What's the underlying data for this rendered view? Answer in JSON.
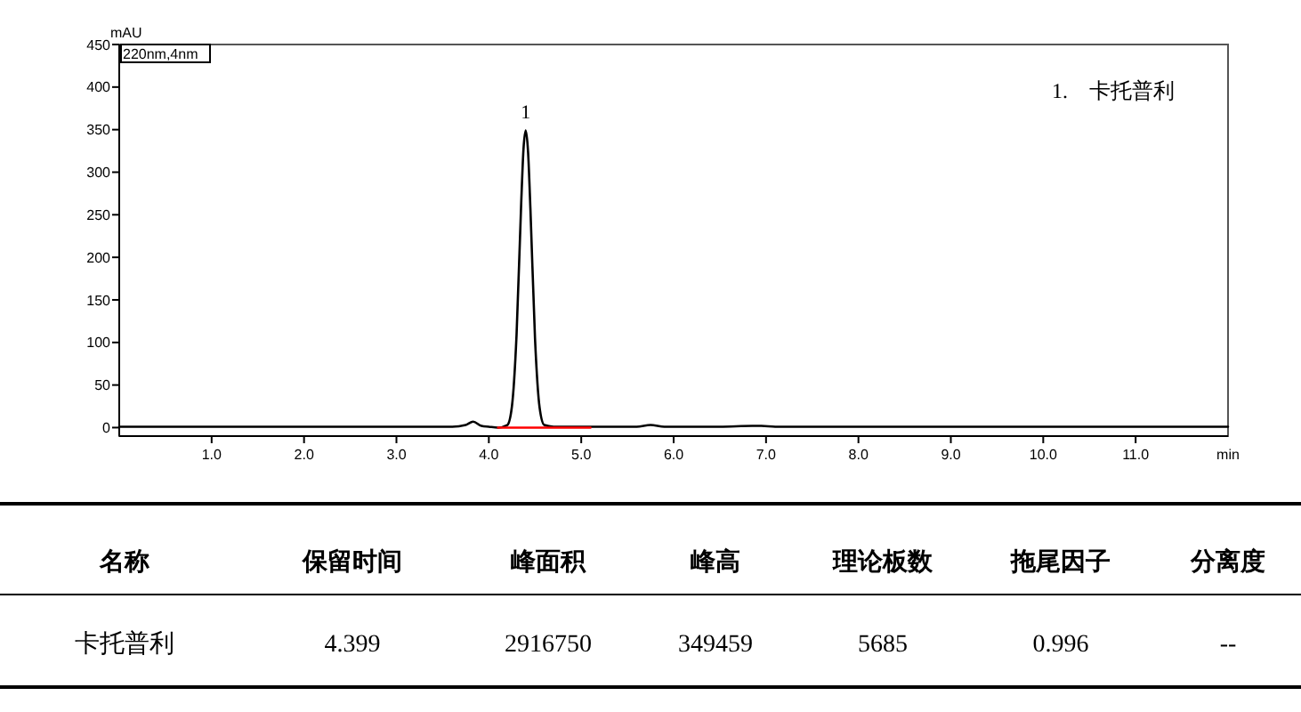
{
  "chart_data": [
    {
      "type": "line",
      "xlabel": "min",
      "ylabel": "mAU",
      "annotations": [
        "220nm,4nm",
        {
          "text": "1",
          "x": 4.399,
          "y": 349
        },
        "1.　卡托普利"
      ],
      "xlim": [
        0,
        12
      ],
      "ylim": [
        -10,
        450
      ],
      "xticks": [
        {
          "value": 1,
          "label": "1.0"
        },
        {
          "value": 2,
          "label": "2.0"
        },
        {
          "value": 3,
          "label": "3.0"
        },
        {
          "value": 4,
          "label": "4.0"
        },
        {
          "value": 5,
          "label": "5.0"
        },
        {
          "value": 6,
          "label": "6.0"
        },
        {
          "value": 7,
          "label": "7.0"
        },
        {
          "value": 8,
          "label": "8.0"
        },
        {
          "value": 9,
          "label": "9.0"
        },
        {
          "value": 10,
          "label": "10.0"
        },
        {
          "value": 11,
          "label": "11.0"
        }
      ],
      "yticks": [
        0,
        50,
        100,
        150,
        200,
        250,
        300,
        350,
        400,
        450
      ],
      "grid": false,
      "marker": "none",
      "line_style": "solid",
      "series": [
        {
          "color": "#000000",
          "x": [
            0,
            1,
            2,
            3,
            3.6,
            3.75,
            3.83,
            3.92,
            4.0,
            4.1,
            4.2,
            4.25,
            4.3,
            4.35,
            4.375,
            4.399,
            4.425,
            4.45,
            4.5,
            4.55,
            4.6,
            4.7,
            4.9,
            5.2,
            5.6,
            5.75,
            5.9,
            6.5,
            6.85,
            6.95,
            7.1,
            8,
            9,
            10,
            11,
            12
          ],
          "values": [
            1,
            1,
            1,
            1,
            1,
            3,
            7,
            2,
            1,
            0,
            3,
            25,
            109,
            263,
            327,
            349,
            323,
            257,
            104,
            23,
            3,
            1,
            1,
            1,
            1,
            3,
            1,
            1,
            2,
            2,
            1,
            1,
            1,
            1,
            1,
            1
          ]
        },
        {
          "color": "#ff0000",
          "x": [
            4.1,
            5.1
          ],
          "values": [
            0,
            0
          ]
        }
      ]
    },
    {
      "type": "other",
      "categories": [
        "名称",
        "保留时间",
        "峰面积",
        "峰高",
        "理论板数",
        "拖尾因子",
        "分离度"
      ],
      "annotations": [
        "卡托普利",
        "4.399",
        "2916750",
        "349459",
        "5685",
        "0.996",
        "--"
      ]
    }
  ]
}
